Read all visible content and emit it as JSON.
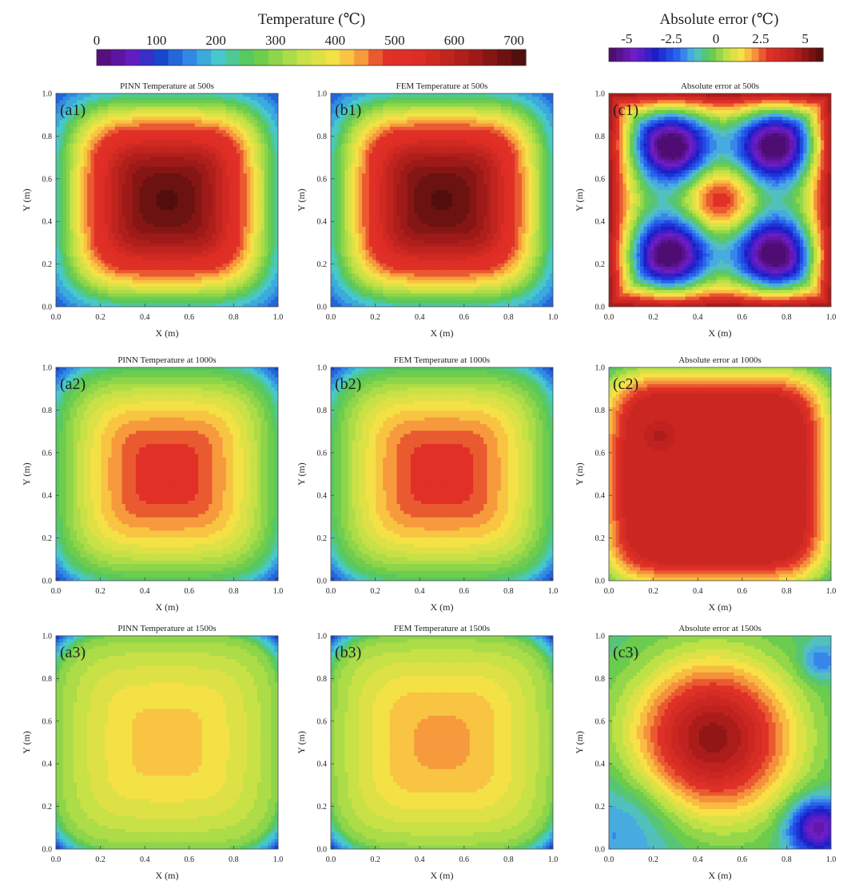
{
  "chart_data": {
    "type": "heatmap",
    "figure": "Temperature field contours: PINN prediction vs FEM reference and absolute error",
    "colorbars": [
      {
        "title": "Temperature (℃)",
        "ticks": [
          "0",
          "100",
          "200",
          "300",
          "400",
          "500",
          "600",
          "700"
        ],
        "range": [
          0,
          720
        ],
        "levels": 30,
        "scale": "temperature"
      },
      {
        "title": "Absolute error (℃)",
        "ticks": [
          "-5",
          "-2.5",
          "0",
          "2.5",
          "5"
        ],
        "range": [
          -6,
          6
        ],
        "levels": 30,
        "scale": "error"
      }
    ],
    "panels": [
      {
        "title": "PINN Temperature at 500s",
        "label": "(a1)",
        "xlabel": "X (m)",
        "ylabel": "Y (m)",
        "kind": "temperature",
        "model": "square",
        "center_value": 700,
        "edge_value": 210,
        "corner_value": 115,
        "xlim": [
          0,
          1
        ],
        "ylim": [
          0,
          1
        ]
      },
      {
        "title": "FEM Temperature at 500s",
        "label": "(b1)",
        "xlabel": "X (m)",
        "ylabel": "Y (m)",
        "kind": "temperature",
        "model": "square",
        "center_value": 700,
        "edge_value": 210,
        "corner_value": 115,
        "xlim": [
          0,
          1
        ],
        "ylim": [
          0,
          1
        ]
      },
      {
        "title": "Absolute error at 500s",
        "label": "(c1)",
        "xlabel": "X (m)",
        "ylabel": "Y (m)",
        "kind": "error",
        "model": "cross",
        "features": [
          {
            "x": 0.28,
            "y": 0.76,
            "amp": -6.0,
            "sigma": 0.11
          },
          {
            "x": 0.75,
            "y": 0.76,
            "amp": -6.0,
            "sigma": 0.11
          },
          {
            "x": 0.27,
            "y": 0.24,
            "amp": -6.0,
            "sigma": 0.11
          },
          {
            "x": 0.75,
            "y": 0.24,
            "amp": -6.0,
            "sigma": 0.11
          },
          {
            "x": 0.5,
            "y": 0.5,
            "amp": 4.2,
            "sigma": 0.12
          }
        ],
        "xlim": [
          0,
          1
        ],
        "ylim": [
          0,
          1
        ]
      },
      {
        "title": "PINN Temperature at 1000s",
        "label": "(a2)",
        "xlabel": "X (m)",
        "ylabel": "Y (m)",
        "kind": "temperature",
        "model": "square",
        "center_value": 500,
        "edge_value": 245,
        "corner_value": 90,
        "xlim": [
          0,
          1
        ],
        "ylim": [
          0,
          1
        ]
      },
      {
        "title": "FEM Temperature at 1000s",
        "label": "(b2)",
        "xlabel": "X (m)",
        "ylabel": "Y (m)",
        "kind": "temperature",
        "model": "square",
        "center_value": 500,
        "edge_value": 245,
        "corner_value": 90,
        "xlim": [
          0,
          1
        ],
        "ylim": [
          0,
          1
        ]
      },
      {
        "title": "Absolute error at 1000s",
        "label": "(c2)",
        "xlabel": "X (m)",
        "ylabel": "Y (m)",
        "kind": "error",
        "model": "plateau",
        "plateau": 3.9,
        "features": [
          {
            "x": 0.23,
            "y": 0.68,
            "amp": 0.7,
            "sigma": 0.035
          }
        ],
        "xlim": [
          0,
          1
        ],
        "ylim": [
          0,
          1
        ]
      },
      {
        "title": "PINN Temperature at 1500s",
        "label": "(a3)",
        "xlabel": "X (m)",
        "ylabel": "Y (m)",
        "kind": "temperature",
        "model": "square",
        "center_value": 420,
        "edge_value": 300,
        "corner_value": 95,
        "xlim": [
          0,
          1
        ],
        "ylim": [
          0,
          1
        ]
      },
      {
        "title": "FEM Temperature at 1500s",
        "label": "(b3)",
        "xlabel": "X (m)",
        "ylabel": "Y (m)",
        "kind": "temperature",
        "model": "square",
        "center_value": 440,
        "edge_value": 300,
        "corner_value": 95,
        "xlim": [
          0,
          1
        ],
        "ylim": [
          0,
          1
        ]
      },
      {
        "title": "Absolute error at 1500s",
        "label": "(c3)",
        "xlabel": "X (m)",
        "ylabel": "Y (m)",
        "kind": "error",
        "model": "blob",
        "base": -0.8,
        "features": [
          {
            "x": 0.47,
            "y": 0.52,
            "amp": 5.8,
            "sigma": 0.26
          },
          {
            "x": 0.94,
            "y": 0.1,
            "amp": -4.5,
            "sigma": 0.09
          },
          {
            "x": 0.08,
            "y": 0.12,
            "amp": -1.2,
            "sigma": 0.18
          },
          {
            "x": 0.95,
            "y": 0.88,
            "amp": -1.5,
            "sigma": 0.06
          }
        ],
        "xlim": [
          0,
          1
        ],
        "ylim": [
          0,
          1
        ]
      }
    ],
    "xticks": [
      "0.0",
      "0.2",
      "0.4",
      "0.6",
      "0.8",
      "1.0"
    ],
    "yticks": [
      "0.0",
      "0.2",
      "0.4",
      "0.6",
      "0.8",
      "1.0"
    ]
  }
}
